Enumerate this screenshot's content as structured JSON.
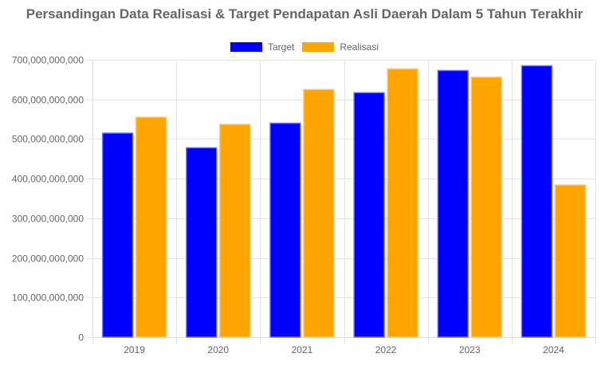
{
  "title": "Persandingan Data Realisasi & Target Pendapatan Asli Daerah Dalam 5 Tahun Terakhir",
  "legend": [
    {
      "label": "Target",
      "color": "#0000FF"
    },
    {
      "label": "Realisasi",
      "color": "#FFA500"
    }
  ],
  "chart_data": {
    "type": "bar",
    "title": "Persandingan Data Realisasi & Target Pendapatan Asli Daerah Dalam 5 Tahun Terakhir",
    "xlabel": "",
    "ylabel": "",
    "categories": [
      "2019",
      "2020",
      "2021",
      "2022",
      "2023",
      "2024"
    ],
    "series": [
      {
        "name": "Target",
        "color": "#0000FF",
        "values": [
          515000000000,
          478000000000,
          540000000000,
          617000000000,
          673000000000,
          685000000000
        ]
      },
      {
        "name": "Realisasi",
        "color": "#FFA500",
        "values": [
          555000000000,
          537000000000,
          625000000000,
          677000000000,
          656000000000,
          384000000000
        ]
      }
    ],
    "ylim": [
      0,
      700000000000
    ],
    "yticks": [
      0,
      100000000000,
      200000000000,
      300000000000,
      400000000000,
      500000000000,
      600000000000,
      700000000000
    ],
    "ytick_labels": [
      "0",
      "100,000,000,000",
      "200,000,000,000",
      "300,000,000,000",
      "400,000,000,000",
      "500,000,000,000",
      "600,000,000,000",
      "700,000,000,000"
    ],
    "grid": true,
    "legend_position": "top"
  }
}
